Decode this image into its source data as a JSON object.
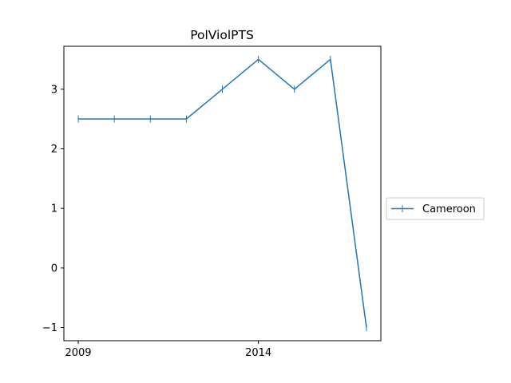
{
  "chart_data": {
    "type": "line",
    "title": "PolViolPTS",
    "xlabel": "",
    "ylabel": "",
    "x": [
      2009,
      2010,
      2011,
      2012,
      2013,
      2014,
      2015,
      2016,
      2017
    ],
    "series": [
      {
        "name": "Cameroon",
        "values": [
          2.5,
          2.5,
          2.5,
          2.5,
          3.0,
          3.5,
          3.0,
          3.5,
          -1.0
        ],
        "color": "#1f77b4",
        "marker": "|"
      }
    ],
    "xlim": [
      2008.6,
      2017.4
    ],
    "ylim": [
      -1.22,
      3.72
    ],
    "xticks": [
      2009,
      2014
    ],
    "xtick_labels": [
      "2009",
      "2014"
    ],
    "yticks": [
      -1,
      0,
      1,
      2,
      3
    ],
    "ytick_labels": [
      "−1",
      "0",
      "1",
      "2",
      "3"
    ],
    "grid": false,
    "legend_position": "center-right-outside"
  }
}
